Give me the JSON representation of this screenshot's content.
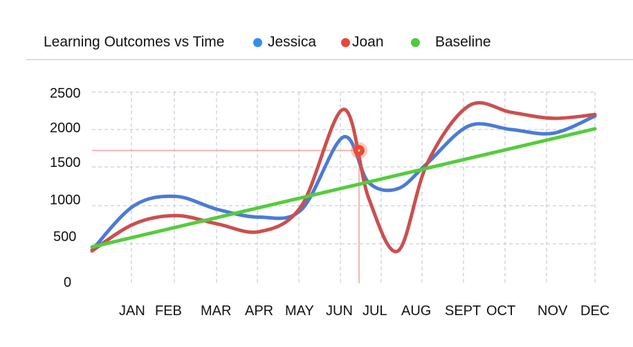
{
  "header": {
    "title": "Learning Outcomes vs Time"
  },
  "legend": [
    {
      "label": "Jessica",
      "color": "#2f8fef"
    },
    {
      "label": "Joan",
      "color": "#e8473a"
    },
    {
      "label": "Baseline",
      "color": "#4ccc3a"
    }
  ],
  "chart_data": {
    "type": "line",
    "title": "Learning Outcomes vs Time",
    "xlabel": "",
    "ylabel": "",
    "ylim": [
      0,
      2500
    ],
    "categories": [
      "JAN",
      "FEB",
      "MAR",
      "APR",
      "MAY",
      "JUN",
      "JUL",
      "AUG",
      "SEPT",
      "OCT",
      "NOV",
      "DEC"
    ],
    "y_ticks": [
      "2500",
      "2000",
      "1500",
      "1000",
      "500",
      "0"
    ],
    "grid": true,
    "legend_position": "top",
    "series": [
      {
        "name": "Jessica",
        "color": "#4a7bd6",
        "points": [
          [
            0.0,
            420
          ],
          [
            1.0,
            1000
          ],
          [
            2.0,
            1120
          ],
          [
            3.0,
            950
          ],
          [
            4.0,
            850
          ],
          [
            5.0,
            950
          ],
          [
            6.0,
            1900
          ],
          [
            6.6,
            1300
          ],
          [
            7.3,
            1220
          ],
          [
            8.0,
            1550
          ],
          [
            9.0,
            2050
          ],
          [
            10.0,
            2000
          ],
          [
            11.0,
            1950
          ],
          [
            12.0,
            2180
          ]
        ]
      },
      {
        "name": "Joan",
        "color": "#cc4f4f",
        "points": [
          [
            0.0,
            410
          ],
          [
            1.0,
            760
          ],
          [
            2.0,
            870
          ],
          [
            3.0,
            760
          ],
          [
            4.0,
            660
          ],
          [
            5.0,
            1000
          ],
          [
            6.0,
            2270
          ],
          [
            6.6,
            1100
          ],
          [
            7.3,
            410
          ],
          [
            8.0,
            1550
          ],
          [
            9.0,
            2320
          ],
          [
            10.0,
            2230
          ],
          [
            11.0,
            2150
          ],
          [
            12.0,
            2200
          ]
        ]
      },
      {
        "name": "Baseline",
        "color": "#55cc3c",
        "points": [
          [
            0.0,
            460
          ],
          [
            12.0,
            2010
          ]
        ]
      }
    ],
    "highlight": {
      "x": 6.3,
      "y": 1720
    }
  }
}
